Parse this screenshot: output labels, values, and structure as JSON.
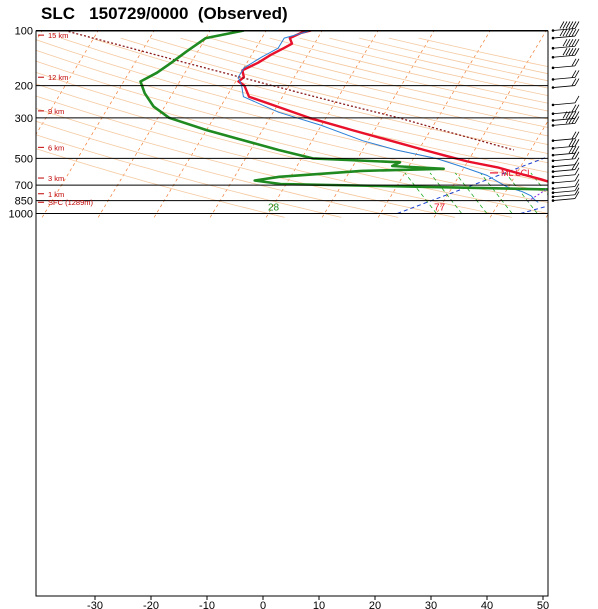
{
  "title": "SLC   150729/0000  (Observed)",
  "colors": {
    "temperature": "#e8102a",
    "dewpoint": "#1f8a1f",
    "virtual_temperature": "#2a7fd8",
    "parcel": "#8b1a1a",
    "isotherm": "#f07a30",
    "dry_adiabat": "#f5c9a0",
    "moist_adiabat": "#1a3fd0",
    "mixing_ratio": "#22aa22",
    "height_label": "#c00000"
  },
  "chart_data": {
    "type": "line",
    "xlim": [
      -37,
      50
    ],
    "ylim": [
      1050,
      100
    ],
    "y_scale": "log",
    "xticks": [
      -30,
      -20,
      -10,
      0,
      10,
      20,
      30,
      40,
      50
    ],
    "yticks": [
      100,
      200,
      300,
      500,
      700,
      850,
      1000
    ],
    "grid": true,
    "height_labels": [
      {
        "label": "15 km",
        "p": 106
      },
      {
        "label": "12 km",
        "p": 180
      },
      {
        "label": "9 km",
        "p": 275
      },
      {
        "label": "6 km",
        "p": 435
      },
      {
        "label": "3 km",
        "p": 640
      },
      {
        "label": "1 km",
        "p": 780
      },
      {
        "label": "SFC (1289m)",
        "p": 868
      }
    ],
    "series": [
      {
        "key": "temperature",
        "points": [
          [
            100,
            -52
          ],
          [
            103,
            -53.5
          ],
          [
            110,
            -55
          ],
          [
            118,
            -54
          ],
          [
            125,
            -55
          ],
          [
            135,
            -56.5
          ],
          [
            150,
            -58
          ],
          [
            165,
            -60
          ],
          [
            180,
            -59
          ],
          [
            190,
            -59.5
          ],
          [
            200,
            -58
          ],
          [
            230,
            -56
          ],
          [
            260,
            -50
          ],
          [
            300,
            -43
          ],
          [
            350,
            -34
          ],
          [
            400,
            -26
          ],
          [
            450,
            -19
          ],
          [
            480,
            -15
          ],
          [
            520,
            -10
          ],
          [
            560,
            -4
          ],
          [
            600,
            0
          ],
          [
            650,
            5
          ],
          [
            700,
            9
          ],
          [
            720,
            10.5
          ],
          [
            745,
            14
          ],
          [
            775,
            17
          ],
          [
            810,
            21
          ],
          [
            840,
            24
          ],
          [
            860,
            26
          ],
          [
            870,
            28
          ],
          [
            878,
            30
          ]
        ]
      },
      {
        "key": "virtual_temperature",
        "points": [
          [
            100,
            -52
          ],
          [
            110,
            -56
          ],
          [
            125,
            -56
          ],
          [
            140,
            -58
          ],
          [
            160,
            -60
          ],
          [
            180,
            -60
          ],
          [
            200,
            -58.5
          ],
          [
            230,
            -57
          ],
          [
            280,
            -49
          ],
          [
            330,
            -40
          ],
          [
            400,
            -31
          ],
          [
            450,
            -24
          ],
          [
            500,
            -16
          ],
          [
            560,
            -10
          ],
          [
            620,
            -5
          ],
          [
            680,
            -2
          ],
          [
            720,
            0
          ],
          [
            760,
            3
          ],
          [
            800,
            5
          ],
          [
            840,
            6
          ],
          [
            870,
            7
          ]
        ]
      },
      {
        "key": "parcel",
        "points": [
          [
            100,
            -96
          ],
          [
            150,
            -71
          ],
          [
            200,
            -53
          ],
          [
            250,
            -39
          ],
          [
            300,
            -27
          ],
          [
            350,
            -18
          ],
          [
            400,
            -10
          ],
          [
            450,
            -3
          ]
        ]
      },
      {
        "key": "dewpoint",
        "points": [
          [
            100,
            -64
          ],
          [
            110,
            -70
          ],
          [
            130,
            -72
          ],
          [
            150,
            -73.5
          ],
          [
            170,
            -75
          ],
          [
            190,
            -77
          ],
          [
            220,
            -75
          ],
          [
            260,
            -72
          ],
          [
            300,
            -68
          ],
          [
            350,
            -60
          ],
          [
            400,
            -52
          ],
          [
            450,
            -45
          ],
          [
            500,
            -38
          ],
          [
            525,
            -22
          ],
          [
            550,
            -23
          ],
          [
            570,
            -13.5
          ],
          [
            585,
            -28
          ],
          [
            630,
            -42
          ],
          [
            660,
            -46
          ],
          [
            690,
            -41
          ],
          [
            720,
            -10
          ],
          [
            740,
            9
          ],
          [
            770,
            12
          ],
          [
            800,
            12
          ],
          [
            840,
            12
          ],
          [
            860,
            11.5
          ],
          [
            870,
            11
          ]
        ]
      }
    ],
    "labels": [
      {
        "key": "surface_temperature",
        "text": "77",
        "p": 905,
        "t": 32.5
      },
      {
        "key": "surface_dewpoint",
        "text": "28",
        "p": 905,
        "t": 10
      },
      {
        "key": "ml_lcl",
        "text": "ML LCL",
        "p": 600,
        "t": 42
      }
    ],
    "wind_barbs": [
      {
        "p": 100,
        "speed": 70
      },
      {
        "p": 110,
        "speed": 60
      },
      {
        "p": 125,
        "speed": 50
      },
      {
        "p": 140,
        "speed": 45
      },
      {
        "p": 160,
        "speed": 20
      },
      {
        "p": 185,
        "speed": 20
      },
      {
        "p": 205,
        "speed": 20
      },
      {
        "p": 255,
        "speed": 10
      },
      {
        "p": 285,
        "speed": 15
      },
      {
        "p": 310,
        "speed": 45
      },
      {
        "p": 330,
        "speed": 40
      },
      {
        "p": 400,
        "speed": 20
      },
      {
        "p": 440,
        "speed": 25
      },
      {
        "p": 480,
        "speed": 25
      },
      {
        "p": 515,
        "speed": 15
      },
      {
        "p": 555,
        "speed": 10
      },
      {
        "p": 590,
        "speed": 15
      },
      {
        "p": 630,
        "speed": 10
      },
      {
        "p": 680,
        "speed": 5
      },
      {
        "p": 730,
        "speed": 5
      },
      {
        "p": 770,
        "speed": 10
      },
      {
        "p": 810,
        "speed": 5
      },
      {
        "p": 850,
        "speed": 5
      }
    ],
    "hodograph_box": "bottom-right"
  }
}
